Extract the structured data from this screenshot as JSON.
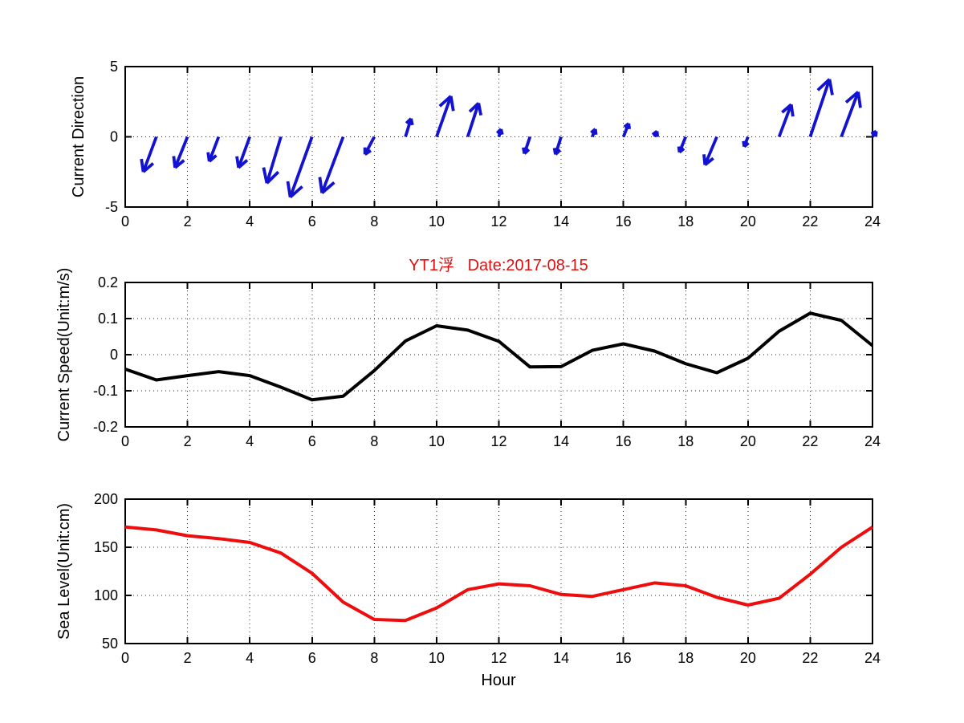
{
  "figure": {
    "background": "#ffffff"
  },
  "chart_data": [
    {
      "type": "quiver",
      "name": "current-direction",
      "ylabel": "Current Direction",
      "xlim": [
        0,
        24
      ],
      "ylim": [
        -5,
        5
      ],
      "xticks": [
        0,
        2,
        4,
        6,
        8,
        10,
        12,
        14,
        16,
        18,
        20,
        22,
        24
      ],
      "yticks": [
        -5,
        0,
        5
      ],
      "grid": true,
      "legend": "none",
      "color": "#1212d0",
      "x": [
        1,
        2,
        3,
        4,
        5,
        6,
        7,
        8,
        9,
        10,
        11,
        12,
        13,
        14,
        15,
        16,
        17,
        18,
        19,
        20,
        21,
        22,
        23,
        24
      ],
      "u": [
        -0.42,
        -0.4,
        -0.3,
        -0.36,
        -0.45,
        -0.7,
        -0.68,
        -0.3,
        0.18,
        0.46,
        0.35,
        0.07,
        -0.18,
        -0.18,
        0.1,
        0.17,
        0.08,
        -0.2,
        -0.38,
        -0.12,
        0.39,
        0.62,
        0.54,
        0.12
      ],
      "v": [
        -2.5,
        -2.2,
        -1.75,
        -2.2,
        -3.3,
        -4.3,
        -4.0,
        -1.25,
        1.3,
        2.9,
        2.4,
        0.55,
        -1.2,
        -1.25,
        0.55,
        0.95,
        0.4,
        -1.1,
        -2.0,
        -0.7,
        2.3,
        4.1,
        3.2,
        0.4
      ]
    },
    {
      "type": "line",
      "name": "current-speed",
      "title": "YT1浮   Date:2017-08-15",
      "title_color": "#e20d0d",
      "ylabel": "Current Speed(Unit:m/s)",
      "xlim": [
        0,
        24
      ],
      "ylim": [
        -0.2,
        0.2
      ],
      "xticks": [
        0,
        2,
        4,
        6,
        8,
        10,
        12,
        14,
        16,
        18,
        20,
        22,
        24
      ],
      "yticks": [
        -0.2,
        -0.1,
        0,
        0.1,
        0.2
      ],
      "grid": true,
      "legend": "none",
      "color": "#000000",
      "x": [
        0,
        1,
        2,
        3,
        4,
        5,
        6,
        7,
        8,
        9,
        10,
        11,
        12,
        13,
        14,
        15,
        16,
        17,
        18,
        19,
        20,
        21,
        22,
        23,
        24
      ],
      "y": [
        -0.04,
        -0.07,
        -0.058,
        -0.047,
        -0.058,
        -0.09,
        -0.125,
        -0.115,
        -0.044,
        0.038,
        0.08,
        0.068,
        0.037,
        -0.034,
        -0.033,
        0.012,
        0.03,
        0.01,
        -0.025,
        -0.05,
        -0.01,
        0.065,
        0.115,
        0.095,
        0.025
      ]
    },
    {
      "type": "line",
      "name": "sea-level",
      "ylabel": "Sea Level(Unit:cm)",
      "xlabel": "Hour",
      "xlim": [
        0,
        24
      ],
      "ylim": [
        50,
        200
      ],
      "xticks": [
        0,
        2,
        4,
        6,
        8,
        10,
        12,
        14,
        16,
        18,
        20,
        22,
        24
      ],
      "yticks": [
        50,
        100,
        150,
        200
      ],
      "grid": true,
      "legend": "none",
      "color": "#ee0c0c",
      "x": [
        0,
        1,
        2,
        3,
        4,
        5,
        6,
        7,
        8,
        9,
        10,
        11,
        12,
        13,
        14,
        15,
        16,
        17,
        18,
        19,
        20,
        21,
        22,
        23,
        24
      ],
      "y": [
        171,
        168,
        162,
        159,
        155,
        144,
        123,
        93,
        75,
        74,
        87,
        106,
        112,
        110,
        101,
        99,
        106,
        113,
        110,
        98,
        90,
        97,
        122,
        150,
        171
      ]
    }
  ]
}
